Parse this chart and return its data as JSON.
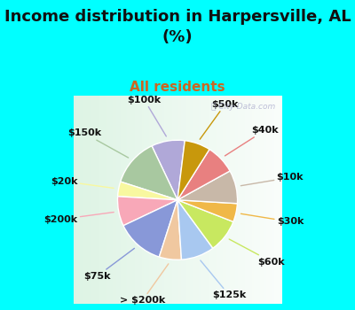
{
  "title": "Income distribution in Harpersville, AL\n(%)",
  "subtitle": "All residents",
  "title_color": "#111111",
  "subtitle_color": "#cc6622",
  "background_cyan": "#00ffff",
  "watermark": "ⓘ City-Data.com",
  "labels": [
    "$100k",
    "$150k",
    "$20k",
    "$200k",
    "$75k",
    "> $200k",
    "$125k",
    "$60k",
    "$30k",
    "$10k",
    "$40k",
    "$50k"
  ],
  "values": [
    9,
    13,
    4,
    8,
    13,
    6,
    9,
    9,
    5,
    9,
    8,
    7
  ],
  "colors": [
    "#b0a8d8",
    "#a8c8a0",
    "#f8f8a0",
    "#f8a8b8",
    "#8898d8",
    "#f0c8a0",
    "#a8c8f0",
    "#c8e860",
    "#f0b848",
    "#c8b8a8",
    "#e88080",
    "#c8980c"
  ],
  "startangle": 83,
  "figsize": [
    4.0,
    3.5
  ],
  "dpi": 100,
  "title_fontsize": 13,
  "subtitle_fontsize": 11,
  "label_fontsize": 8
}
